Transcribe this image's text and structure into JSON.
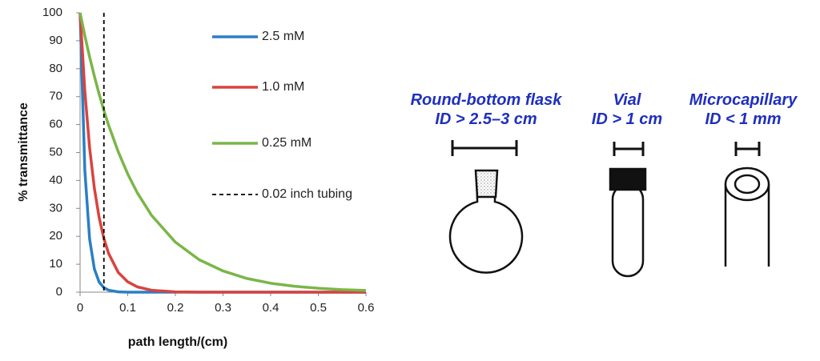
{
  "chart_data": {
    "type": "line",
    "x": [
      0,
      0.01,
      0.02,
      0.03,
      0.04,
      0.05,
      0.06,
      0.08,
      0.1,
      0.12,
      0.15,
      0.2,
      0.25,
      0.3,
      0.35,
      0.4,
      0.45,
      0.5,
      0.55,
      0.6
    ],
    "series": [
      {
        "name": "2.5 mM",
        "color": "#2a7fc4",
        "values": [
          100,
          43.6,
          19.0,
          8.3,
          3.6,
          1.6,
          0.7,
          0.1,
          0,
          0,
          0,
          0,
          0,
          0,
          0,
          0,
          0,
          0,
          0,
          0
        ]
      },
      {
        "name": "1.0 mM",
        "color": "#d9433f",
        "values": [
          100,
          71.9,
          51.7,
          37.2,
          26.7,
          19.2,
          13.8,
          7.1,
          3.7,
          1.9,
          0.7,
          0.1,
          0,
          0,
          0,
          0,
          0,
          0,
          0,
          0
        ]
      },
      {
        "name": "0.25 mM",
        "color": "#7ab648",
        "values": [
          100,
          91.8,
          84.2,
          77.3,
          70.9,
          65.0,
          59.7,
          50.3,
          42.3,
          35.6,
          27.5,
          17.9,
          11.6,
          7.6,
          4.9,
          3.2,
          2.1,
          1.4,
          0.9,
          0.6
        ]
      }
    ],
    "vline": {
      "name": "0.02 inch tubing",
      "x": 0.05,
      "color": "#000000"
    },
    "xlabel": "path length/(cm)",
    "ylabel": "% transmittance",
    "xlim": [
      0,
      0.6
    ],
    "ylim": [
      0,
      100
    ],
    "xticks": [
      0,
      0.1,
      0.2,
      0.3,
      0.4,
      0.5,
      0.6
    ],
    "yticks": [
      0,
      10,
      20,
      30,
      40,
      50,
      60,
      70,
      80,
      90,
      100
    ],
    "grid": false
  },
  "diagram": {
    "items": [
      {
        "title": "Round-bottom flask",
        "size": "ID > 2.5–3 cm"
      },
      {
        "title": "Vial",
        "size": "ID > 1 cm"
      },
      {
        "title": "Microcapillary",
        "size": "ID < 1 mm"
      }
    ]
  }
}
